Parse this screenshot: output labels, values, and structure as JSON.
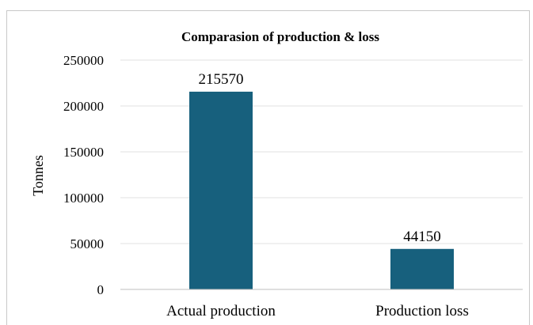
{
  "chart_data": {
    "type": "bar",
    "title": "Comparasion  of production  &  loss",
    "xlabel": "",
    "ylabel": "Tonnes",
    "categories": [
      "Actual production",
      "Production loss"
    ],
    "values": [
      215570,
      44150
    ],
    "data_labels": [
      "215570",
      "44150"
    ],
    "ylim": [
      0,
      250000
    ],
    "yticks": [
      0,
      50000,
      100000,
      150000,
      200000,
      250000
    ],
    "ytick_labels": [
      "0",
      "50000",
      "100000",
      "150000",
      "200000",
      "250000"
    ],
    "grid": true,
    "legend": "none",
    "bar_color": "#17607d"
  }
}
